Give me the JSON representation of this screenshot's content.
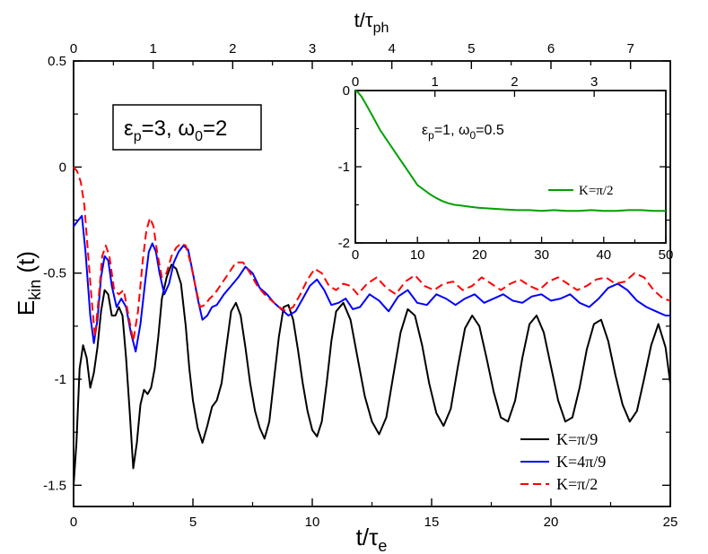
{
  "chart_data": [
    {
      "type": "line",
      "x_label": "t/τ",
      "x_label_sub": "e",
      "y_label": "E",
      "y_label_sub": "kin",
      "y_label_suffix": " (t)",
      "top_axis_label": "t/τ",
      "top_axis_label_sub": "ph",
      "xlim": [
        0,
        25
      ],
      "ylim": [
        -1.6,
        0.5
      ],
      "top_axis_range": [
        0,
        7.5
      ],
      "x_ticks": [
        "0",
        "5",
        "10",
        "15",
        "20",
        "25"
      ],
      "y_ticks": [
        "0.5",
        "0",
        "-0.5",
        "-1",
        "-1.5"
      ],
      "top_ticks": [
        "0",
        "1",
        "2",
        "3",
        "4",
        "5",
        "6",
        "7"
      ],
      "annotation": {
        "eps_sym": "ε",
        "eps_sub": "p",
        "eps_val": "=3, ",
        "omega_sym": "ω",
        "omega_sub": "0",
        "omega_val": "=2"
      },
      "legend_position": "bottom-right",
      "series": [
        {
          "name": "K=π/9",
          "color": "#000000",
          "dash": "solid",
          "x": [
            0,
            0.12,
            0.25,
            0.4,
            0.55,
            0.7,
            0.85,
            1.0,
            1.15,
            1.3,
            1.45,
            1.6,
            1.75,
            1.9,
            2.05,
            2.2,
            2.35,
            2.5,
            2.65,
            2.8,
            2.95,
            3.1,
            3.25,
            3.4,
            3.55,
            3.7,
            3.9,
            4.1,
            4.3,
            4.5,
            4.7,
            4.85,
            5.0,
            5.2,
            5.4,
            5.6,
            5.8,
            6.0,
            6.2,
            6.4,
            6.6,
            6.8,
            7.0,
            7.2,
            7.4,
            7.6,
            7.8,
            8.0,
            8.2,
            8.4,
            8.6,
            8.8,
            9.0,
            9.2,
            9.4,
            9.6,
            9.8,
            10.0,
            10.2,
            10.4,
            10.6,
            10.8,
            11.0,
            11.3,
            11.6,
            11.9,
            12.2,
            12.5,
            12.8,
            13.1,
            13.4,
            13.7,
            14.0,
            14.3,
            14.6,
            14.9,
            15.2,
            15.5,
            15.8,
            16.1,
            16.4,
            16.7,
            17.0,
            17.3,
            17.6,
            17.9,
            18.2,
            18.5,
            18.8,
            19.1,
            19.4,
            19.7,
            20.0,
            20.3,
            20.6,
            20.9,
            21.2,
            21.5,
            21.8,
            22.1,
            22.4,
            22.7,
            23.0,
            23.3,
            23.6,
            23.9,
            24.2,
            24.5,
            24.8,
            25.0
          ],
          "y": [
            -1.5,
            -1.3,
            -0.95,
            -0.84,
            -0.9,
            -1.04,
            -0.97,
            -0.85,
            -0.68,
            -0.58,
            -0.6,
            -0.7,
            -0.7,
            -0.66,
            -0.7,
            -0.9,
            -1.15,
            -1.42,
            -1.3,
            -1.12,
            -1.05,
            -1.07,
            -1.04,
            -0.95,
            -0.8,
            -0.62,
            -0.52,
            -0.46,
            -0.48,
            -0.55,
            -0.75,
            -0.95,
            -1.1,
            -1.23,
            -1.3,
            -1.22,
            -1.13,
            -1.1,
            -1.02,
            -0.85,
            -0.68,
            -0.64,
            -0.7,
            -0.85,
            -1.02,
            -1.15,
            -1.23,
            -1.28,
            -1.2,
            -1.0,
            -0.8,
            -0.66,
            -0.65,
            -0.72,
            -0.86,
            -1.02,
            -1.15,
            -1.24,
            -1.27,
            -1.2,
            -1.02,
            -0.82,
            -0.68,
            -0.64,
            -0.72,
            -0.9,
            -1.08,
            -1.2,
            -1.26,
            -1.18,
            -0.98,
            -0.78,
            -0.67,
            -0.7,
            -0.84,
            -1.02,
            -1.16,
            -1.22,
            -1.14,
            -0.94,
            -0.76,
            -0.7,
            -0.75,
            -0.9,
            -1.06,
            -1.18,
            -1.2,
            -1.1,
            -0.9,
            -0.74,
            -0.7,
            -0.78,
            -0.94,
            -1.1,
            -1.2,
            -1.18,
            -1.04,
            -0.86,
            -0.74,
            -0.72,
            -0.82,
            -0.98,
            -1.12,
            -1.2,
            -1.15,
            -1.0,
            -0.84,
            -0.74,
            -0.85,
            -1.02
          ]
        },
        {
          "name": "K=4π/9",
          "color": "#0000ff",
          "dash": "solid",
          "x": [
            0,
            0.2,
            0.35,
            0.5,
            0.7,
            0.85,
            1.0,
            1.15,
            1.3,
            1.45,
            1.6,
            1.8,
            2.0,
            2.2,
            2.4,
            2.6,
            2.8,
            3.0,
            3.15,
            3.3,
            3.45,
            3.6,
            3.8,
            4.0,
            4.2,
            4.4,
            4.6,
            4.8,
            5.0,
            5.2,
            5.4,
            5.6,
            5.8,
            6.0,
            6.3,
            6.6,
            6.9,
            7.2,
            7.5,
            7.8,
            8.1,
            8.4,
            8.7,
            9.0,
            9.3,
            9.6,
            9.9,
            10.2,
            10.5,
            10.8,
            11.1,
            11.4,
            11.7,
            12.0,
            12.4,
            12.8,
            13.2,
            13.6,
            14.0,
            14.4,
            14.8,
            15.2,
            15.6,
            16.0,
            16.4,
            16.8,
            17.2,
            17.6,
            18.0,
            18.4,
            18.8,
            19.2,
            19.6,
            20.0,
            20.4,
            20.8,
            21.2,
            21.6,
            22.0,
            22.4,
            22.8,
            23.2,
            23.6,
            24.0,
            24.4,
            24.8,
            25.0
          ],
          "y": [
            -0.28,
            -0.25,
            -0.23,
            -0.4,
            -0.7,
            -0.83,
            -0.72,
            -0.52,
            -0.42,
            -0.44,
            -0.56,
            -0.66,
            -0.62,
            -0.66,
            -0.78,
            -0.87,
            -0.74,
            -0.54,
            -0.4,
            -0.36,
            -0.4,
            -0.5,
            -0.6,
            -0.55,
            -0.45,
            -0.4,
            -0.37,
            -0.39,
            -0.5,
            -0.62,
            -0.72,
            -0.7,
            -0.66,
            -0.65,
            -0.6,
            -0.56,
            -0.52,
            -0.47,
            -0.5,
            -0.57,
            -0.6,
            -0.64,
            -0.67,
            -0.7,
            -0.68,
            -0.62,
            -0.56,
            -0.53,
            -0.58,
            -0.65,
            -0.64,
            -0.62,
            -0.67,
            -0.66,
            -0.6,
            -0.63,
            -0.68,
            -0.61,
            -0.58,
            -0.64,
            -0.65,
            -0.6,
            -0.62,
            -0.65,
            -0.62,
            -0.6,
            -0.64,
            -0.62,
            -0.6,
            -0.63,
            -0.64,
            -0.61,
            -0.6,
            -0.63,
            -0.62,
            -0.6,
            -0.64,
            -0.66,
            -0.62,
            -0.57,
            -0.55,
            -0.58,
            -0.63,
            -0.66,
            -0.68,
            -0.7,
            -0.7
          ]
        },
        {
          "name": "K=π/2",
          "color": "#ff0000",
          "dash": "dashed",
          "x": [
            0,
            0.15,
            0.3,
            0.45,
            0.6,
            0.75,
            0.9,
            1.05,
            1.2,
            1.35,
            1.5,
            1.7,
            1.9,
            2.1,
            2.3,
            2.5,
            2.7,
            2.9,
            3.05,
            3.2,
            3.35,
            3.5,
            3.7,
            3.9,
            4.1,
            4.3,
            4.5,
            4.7,
            4.9,
            5.1,
            5.3,
            5.5,
            5.7,
            5.9,
            6.2,
            6.5,
            6.8,
            7.1,
            7.4,
            7.7,
            8.0,
            8.3,
            8.6,
            8.9,
            9.2,
            9.5,
            9.8,
            10.1,
            10.4,
            10.7,
            11.0,
            11.3,
            11.6,
            11.9,
            12.3,
            12.7,
            13.1,
            13.5,
            13.9,
            14.3,
            14.7,
            15.1,
            15.5,
            15.9,
            16.3,
            16.7,
            17.1,
            17.5,
            17.9,
            18.3,
            18.7,
            19.1,
            19.5,
            19.9,
            20.3,
            20.7,
            21.1,
            21.5,
            21.9,
            22.3,
            22.7,
            23.1,
            23.5,
            23.9,
            24.3,
            24.7,
            25.0
          ],
          "y": [
            0.0,
            -0.02,
            -0.07,
            -0.18,
            -0.4,
            -0.62,
            -0.8,
            -0.62,
            -0.42,
            -0.37,
            -0.42,
            -0.58,
            -0.6,
            -0.58,
            -0.7,
            -0.82,
            -0.68,
            -0.44,
            -0.3,
            -0.24,
            -0.28,
            -0.4,
            -0.52,
            -0.5,
            -0.42,
            -0.38,
            -0.36,
            -0.37,
            -0.45,
            -0.56,
            -0.66,
            -0.65,
            -0.62,
            -0.6,
            -0.55,
            -0.5,
            -0.45,
            -0.45,
            -0.5,
            -0.56,
            -0.6,
            -0.63,
            -0.66,
            -0.68,
            -0.66,
            -0.6,
            -0.53,
            -0.48,
            -0.5,
            -0.56,
            -0.58,
            -0.55,
            -0.56,
            -0.6,
            -0.55,
            -0.52,
            -0.57,
            -0.6,
            -0.54,
            -0.51,
            -0.56,
            -0.58,
            -0.55,
            -0.54,
            -0.58,
            -0.56,
            -0.52,
            -0.55,
            -0.58,
            -0.55,
            -0.53,
            -0.56,
            -0.58,
            -0.54,
            -0.52,
            -0.55,
            -0.58,
            -0.56,
            -0.53,
            -0.52,
            -0.55,
            -0.54,
            -0.5,
            -0.52,
            -0.58,
            -0.62,
            -0.63
          ]
        }
      ]
    },
    {
      "type": "line",
      "xlim": [
        0,
        50
      ],
      "ylim": [
        -2,
        0
      ],
      "top_axis_range": [
        0,
        3.9
      ],
      "x_ticks": [
        "0",
        "10",
        "20",
        "30",
        "40",
        "50"
      ],
      "y_ticks": [
        "0",
        "-1",
        "-2"
      ],
      "top_ticks": [
        "0",
        "1",
        "2",
        "3"
      ],
      "annotation": {
        "eps_sym": "ε",
        "eps_sub": "p",
        "eps_val": "=1, ",
        "omega_sym": "ω",
        "omega_sub": "0",
        "omega_val": "=0.5"
      },
      "legend_position": "right",
      "series": [
        {
          "name": "K=π/2",
          "color": "#00a000",
          "dash": "solid",
          "x": [
            0,
            0.5,
            1,
            1.5,
            2,
            3,
            4,
            5,
            6,
            7,
            8,
            9,
            10,
            11,
            12,
            13,
            14,
            15,
            16,
            17,
            18,
            19,
            20,
            22,
            24,
            26,
            28,
            30,
            32,
            34,
            36,
            38,
            40,
            42,
            44,
            46,
            48,
            50
          ],
          "y": [
            0.0,
            -0.03,
            -0.08,
            -0.15,
            -0.22,
            -0.37,
            -0.52,
            -0.64,
            -0.76,
            -0.88,
            -1.0,
            -1.12,
            -1.24,
            -1.3,
            -1.36,
            -1.41,
            -1.45,
            -1.48,
            -1.5,
            -1.51,
            -1.52,
            -1.53,
            -1.54,
            -1.55,
            -1.56,
            -1.57,
            -1.57,
            -1.58,
            -1.57,
            -1.58,
            -1.58,
            -1.57,
            -1.58,
            -1.58,
            -1.57,
            -1.57,
            -1.58,
            -1.58
          ]
        }
      ]
    }
  ]
}
